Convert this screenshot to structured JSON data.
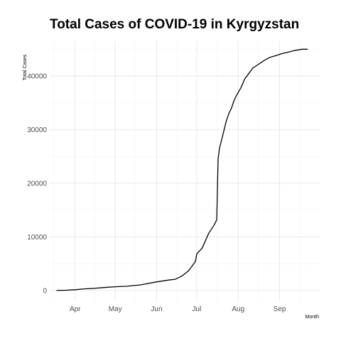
{
  "chart_data": {
    "type": "line",
    "title": "Total Cases of COVID-19 in Kyrgyzstan",
    "xlabel": "Month",
    "ylabel": "Total Cases",
    "x_ticks": [
      "Apr",
      "May",
      "Jun",
      "Jul",
      "Aug",
      "Sep"
    ],
    "y_ticks": [
      0,
      10000,
      20000,
      30000,
      40000
    ],
    "ylim": [
      -2000,
      46500
    ],
    "xlim": [
      "2020-03-13",
      "2020-10-01"
    ],
    "grid": true,
    "legend": "none",
    "series": [
      {
        "color": "#000000",
        "x": [
          "2020-03-18",
          "2020-03-25",
          "2020-04-01",
          "2020-04-08",
          "2020-04-15",
          "2020-04-22",
          "2020-05-01",
          "2020-05-10",
          "2020-05-20",
          "2020-06-01",
          "2020-06-10",
          "2020-06-15",
          "2020-06-20",
          "2020-06-25",
          "2020-06-30",
          "2020-07-01",
          "2020-07-05",
          "2020-07-10",
          "2020-07-14",
          "2020-07-16",
          "2020-07-17",
          "2020-07-18",
          "2020-07-19",
          "2020-07-21",
          "2020-07-23",
          "2020-07-25",
          "2020-07-27",
          "2020-07-29",
          "2020-07-31",
          "2020-08-03",
          "2020-08-06",
          "2020-08-09",
          "2020-08-12",
          "2020-08-15",
          "2020-08-18",
          "2020-08-21",
          "2020-08-25",
          "2020-08-29",
          "2020-09-03",
          "2020-09-08",
          "2020-09-13",
          "2020-09-18",
          "2020-09-22"
        ],
        "y": [
          0,
          50,
          150,
          300,
          400,
          550,
          700,
          800,
          1050,
          1600,
          1950,
          2100,
          2700,
          3700,
          5400,
          6800,
          7900,
          10700,
          12200,
          13200,
          24500,
          26500,
          27500,
          29500,
          31500,
          33000,
          34000,
          35500,
          36500,
          37800,
          39500,
          40500,
          41500,
          42000,
          42500,
          43000,
          43500,
          43800,
          44200,
          44500,
          44800,
          45000,
          45000
        ]
      }
    ]
  }
}
